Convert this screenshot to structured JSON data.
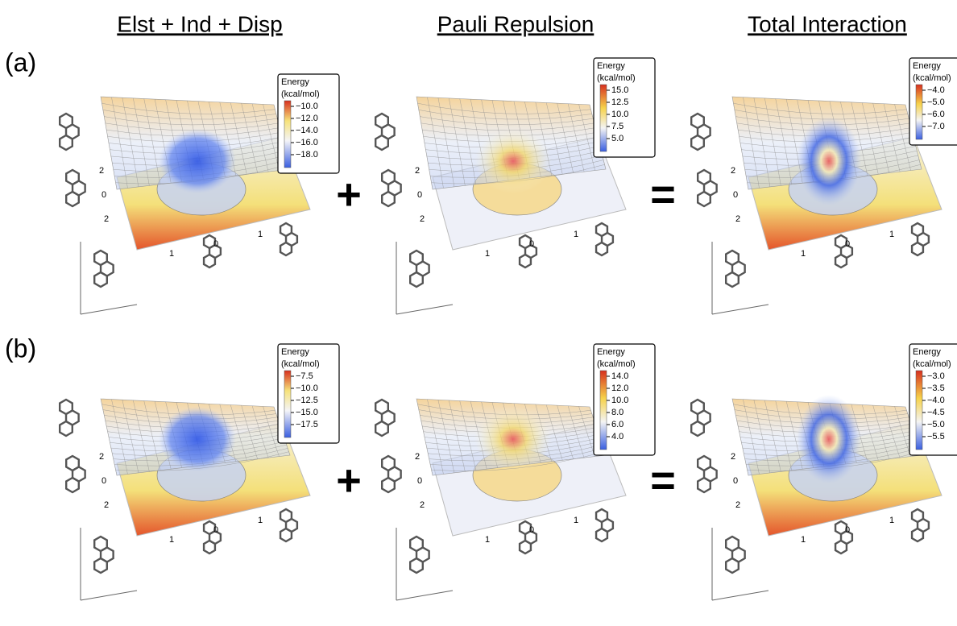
{
  "columns": [
    "Elst + Ind + Disp",
    "Pauli Repulsion",
    "Total Interaction"
  ],
  "rows": [
    {
      "label": "(a)",
      "operators": [
        "+",
        "="
      ],
      "panels": [
        {
          "colorbar": {
            "title": "Energy",
            "unit": "(kcal/mol)",
            "ticks": [
              "−10.0",
              "−12.0",
              "−14.0",
              "−16.0",
              "−18.0"
            ]
          },
          "left_ticks": [
            "2",
            "0",
            "2"
          ],
          "bottom_ticks": [
            "1",
            "0",
            "1"
          ]
        },
        {
          "colorbar": {
            "title": "Energy",
            "unit": "(kcal/mol)",
            "ticks": [
              "15.0",
              "12.5",
              "10.0",
              "7.5",
              "5.0"
            ]
          },
          "left_ticks": [
            "2",
            "0",
            "2"
          ],
          "bottom_ticks": [
            "1",
            "0",
            "1"
          ]
        },
        {
          "colorbar": {
            "title": "Energy",
            "unit": "(kcal/mol)",
            "ticks": [
              "−4.0",
              "−5.0",
              "−6.0",
              "−7.0"
            ]
          },
          "left_ticks": [
            "2",
            "0",
            "2"
          ],
          "bottom_ticks": [
            "1",
            "0",
            "1"
          ]
        }
      ]
    },
    {
      "label": "(b)",
      "operators": [
        "+",
        "="
      ],
      "panels": [
        {
          "colorbar": {
            "title": "Energy",
            "unit": "(kcal/mol)",
            "ticks": [
              "−7.5",
              "−10.0",
              "−12.5",
              "−15.0",
              "−17.5"
            ]
          },
          "left_ticks": [
            "2",
            "0",
            "2"
          ],
          "bottom_ticks": [
            "1",
            "0",
            "1"
          ]
        },
        {
          "colorbar": {
            "title": "Energy",
            "unit": "(kcal/mol)",
            "ticks": [
              "14.0",
              "12.0",
              "10.0",
              "8.0",
              "6.0",
              "4.0"
            ]
          },
          "left_ticks": [
            "2",
            "0",
            "2"
          ],
          "bottom_ticks": [
            "1",
            "0",
            "1"
          ]
        },
        {
          "colorbar": {
            "title": "Energy",
            "unit": "(kcal/mol)",
            "ticks": [
              "−3.0",
              "−3.5",
              "−4.0",
              "−4.5",
              "−5.0",
              "−5.5"
            ]
          },
          "left_ticks": [
            "2",
            "0",
            "2"
          ],
          "bottom_ticks": [
            "1",
            "0",
            "1"
          ]
        }
      ]
    }
  ]
}
